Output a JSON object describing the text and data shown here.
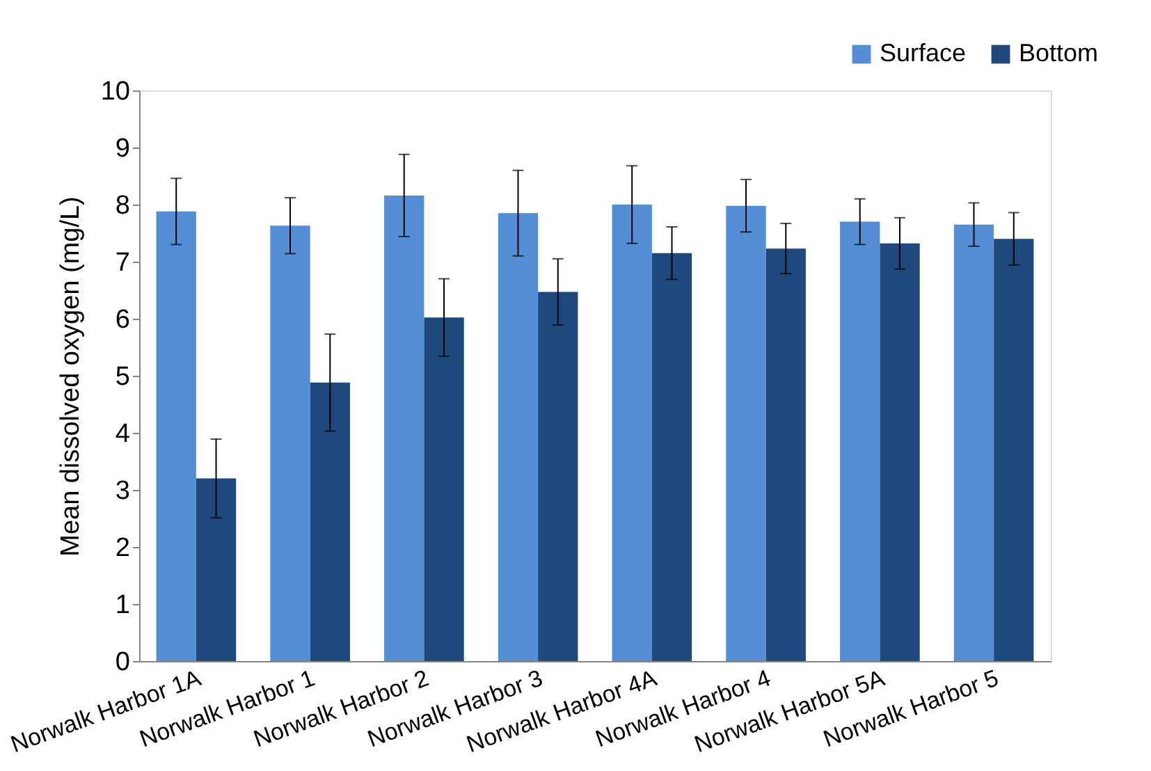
{
  "chart_data": {
    "type": "bar",
    "ylabel": "Mean dissolved oxygen (mg/L)",
    "categories": [
      "Norwalk Harbor 1A",
      "Norwalk Harbor 1",
      "Norwalk Harbor 2",
      "Norwalk Harbor 3",
      "Norwalk Harbor 4A",
      "Norwalk Harbor 4",
      "Norwalk Harbor 5A",
      "Norwalk Harbor 5"
    ],
    "series": [
      {
        "name": "Surface",
        "color": "#558ed5",
        "values": [
          7.88,
          7.63,
          8.16,
          7.85,
          8.0,
          7.98,
          7.7,
          7.65
        ],
        "errors": [
          0.58,
          0.49,
          0.72,
          0.75,
          0.68,
          0.46,
          0.4,
          0.38
        ]
      },
      {
        "name": "Bottom",
        "color": "#1f497d",
        "values": [
          3.2,
          4.88,
          6.02,
          6.47,
          7.15,
          7.23,
          7.32,
          7.4
        ],
        "errors": [
          0.69,
          0.85,
          0.68,
          0.58,
          0.46,
          0.44,
          0.45,
          0.46
        ]
      }
    ],
    "ylim": [
      0,
      10
    ],
    "yticks": [
      0,
      1,
      2,
      3,
      4,
      5,
      6,
      7,
      8,
      9,
      10
    ],
    "grid": false,
    "legend": "top right"
  }
}
